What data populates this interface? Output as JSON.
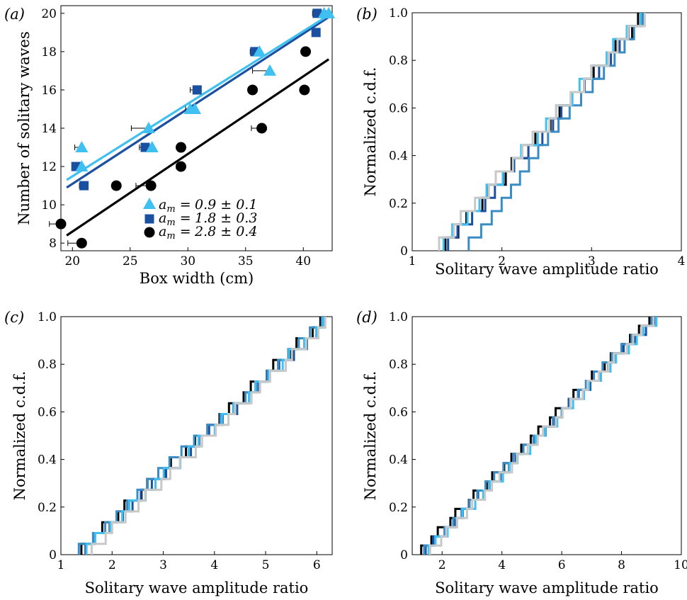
{
  "chart_data": [
    {
      "panel": "(a)",
      "type": "scatter",
      "xlabel": "Box width (cm)",
      "ylabel": "Number of solitary waves",
      "xlim": [
        19,
        42.5
      ],
      "ylim": [
        7.6,
        20.4
      ],
      "xticks": [
        20,
        25,
        30,
        35,
        40
      ],
      "yticks": [
        8,
        10,
        12,
        14,
        16,
        18,
        20
      ],
      "legend_position": "bottom-right",
      "series": [
        {
          "name": "a_m = 0.9 ± 0.1",
          "legend_label": "0.9 ± 0.1",
          "marker": "triangle",
          "color": "#3fc0f0",
          "points": [
            [
              20.8,
              13
            ],
            [
              20.8,
              12
            ],
            [
              26.6,
              14
            ],
            [
              26.9,
              13
            ],
            [
              30.2,
              15
            ],
            [
              30.6,
              15
            ],
            [
              36.2,
              18
            ],
            [
              37.1,
              17
            ],
            [
              41.8,
              20
            ],
            [
              42.2,
              20
            ]
          ],
          "xerr": [
            0.6,
            0.3,
            1.5,
            0.5,
            0.4,
            0.3,
            0.6,
            1.5,
            0.3,
            0.2
          ],
          "fit": [
            [
              19.5,
              11.3
            ],
            [
              42.2,
              19.9
            ]
          ]
        },
        {
          "name": "a_m = 1.8 ± 0.3",
          "legend_label": "1.8 ± 0.3",
          "marker": "square",
          "color": "#1b4fa0",
          "points": [
            [
              20.3,
              12
            ],
            [
              21.0,
              11
            ],
            [
              26.3,
              13
            ],
            [
              30.8,
              16
            ],
            [
              35.8,
              18
            ],
            [
              41.2,
              20
            ],
            [
              41.1,
              19
            ]
          ],
          "xerr": [
            0.3,
            0.4,
            0.5,
            0.6,
            0.4,
            0.4,
            0.2
          ],
          "fit": [
            [
              19.5,
              10.9
            ],
            [
              42.2,
              19.8
            ]
          ]
        },
        {
          "name": "a_m = 2.8 ± 0.4",
          "legend_label": "2.8 ± 0.4",
          "marker": "circle",
          "color": "#000000",
          "points": [
            [
              19.0,
              9
            ],
            [
              20.8,
              8
            ],
            [
              23.8,
              11
            ],
            [
              26.8,
              11
            ],
            [
              29.4,
              13
            ],
            [
              29.4,
              12
            ],
            [
              35.6,
              16
            ],
            [
              36.4,
              14
            ],
            [
              40.2,
              18
            ],
            [
              40.1,
              16
            ]
          ],
          "xerr": [
            1.0,
            1.2,
            0.3,
            1.3,
            0.3,
            0.4,
            0.3,
            0.9,
            0.3,
            0.2
          ],
          "fit": [
            [
              19.5,
              8.4
            ],
            [
              42.2,
              17.6
            ]
          ]
        }
      ]
    },
    {
      "panel": "(b)",
      "type": "line",
      "step": true,
      "xlabel": "Solitary wave amplitude ratio",
      "ylabel": "Normalized c.d.f.",
      "xlim": [
        1,
        4
      ],
      "ylim": [
        0,
        1
      ],
      "xticks": [
        "1",
        "2",
        "3",
        "4"
      ],
      "yticks": [
        "0",
        "0.2",
        "0.4",
        "0.6",
        "0.8",
        "1.0"
      ],
      "n_steps": 18,
      "series": [
        {
          "color": "#000000",
          "x_start": 1.37,
          "x_end": 3.55
        },
        {
          "color": "#1b4fa0",
          "x_start": 1.4,
          "x_end": 3.57
        },
        {
          "color": "#3a8cc4",
          "x_start": 1.63,
          "x_end": 3.57
        },
        {
          "color": "#3fc0f0",
          "x_start": 1.35,
          "x_end": 3.52
        },
        {
          "color": "#c8c8c8",
          "x_start": 1.3,
          "x_end": 3.56
        }
      ]
    },
    {
      "panel": "(c)",
      "type": "line",
      "step": true,
      "xlabel": "Solitary wave amplitude ratio",
      "ylabel": "Normalized c.d.f.",
      "xlim": [
        1,
        6.3
      ],
      "ylim": [
        0,
        1
      ],
      "xticks": [
        "1",
        "2",
        "3",
        "4",
        "5",
        "6"
      ],
      "yticks": [
        "0",
        "0.2",
        "0.4",
        "0.6",
        "0.8",
        "1.0"
      ],
      "n_steps": 22,
      "series": [
        {
          "color": "#000000",
          "x_start": 1.4,
          "x_end": 6.1
        },
        {
          "color": "#1b4fa0",
          "x_start": 1.48,
          "x_end": 6.2
        },
        {
          "color": "#3a8cc4",
          "x_start": 1.35,
          "x_end": 6.15
        },
        {
          "color": "#3fc0f0",
          "x_start": 1.5,
          "x_end": 6.18
        },
        {
          "color": "#c8c8c8",
          "x_start": 1.6,
          "x_end": 6.22
        }
      ]
    },
    {
      "panel": "(d)",
      "type": "line",
      "step": true,
      "xlabel": "Solitary wave amplitude ratio",
      "ylabel": "Normalized c.d.f.",
      "xlim": [
        1,
        10
      ],
      "ylim": [
        0,
        1
      ],
      "xticks": [
        "2",
        "4",
        "6",
        "8",
        "10"
      ],
      "yticks": [
        "0",
        "0.2",
        "0.4",
        "0.6",
        "0.8",
        "1.0"
      ],
      "n_steps": 26,
      "series": [
        {
          "color": "#000000",
          "x_start": 1.3,
          "x_end": 8.9
        },
        {
          "color": "#1b4fa0",
          "x_start": 1.45,
          "x_end": 9.05
        },
        {
          "color": "#3a8cc4",
          "x_start": 1.4,
          "x_end": 8.95
        },
        {
          "color": "#3fc0f0",
          "x_start": 1.55,
          "x_end": 9.1
        },
        {
          "color": "#c8c8c8",
          "x_start": 1.6,
          "x_end": 9.0
        }
      ]
    }
  ]
}
